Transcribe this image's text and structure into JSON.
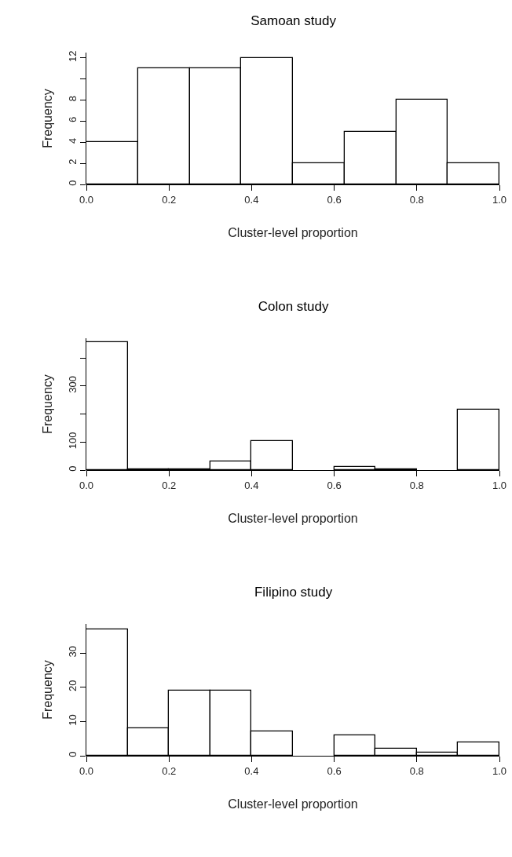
{
  "chart_data": [
    {
      "type": "histogram",
      "title": "Samoan study",
      "xlabel": "Cluster-level proportion",
      "ylabel": "Frequency",
      "color": "#ffffff",
      "grid": false,
      "legend": false,
      "bins": [
        0,
        0.125,
        0.25,
        0.375,
        0.5,
        0.625,
        0.75,
        0.875,
        1
      ],
      "values": [
        4,
        11,
        11,
        12,
        2,
        5,
        8,
        2
      ],
      "xlim": [
        0,
        1
      ],
      "xticks": [
        {
          "value": 0,
          "label": "0.0"
        },
        {
          "value": 0.2,
          "label": "0.2"
        },
        {
          "value": 0.4,
          "label": "0.4"
        },
        {
          "value": 0.6,
          "label": "0.6"
        },
        {
          "value": 0.8,
          "label": "0.8"
        },
        {
          "value": 1,
          "label": "1.0"
        }
      ],
      "ylim": [
        0,
        12.5
      ],
      "yticks": [
        0,
        2,
        4,
        6,
        8,
        {
          "value": 10,
          "label": null
        },
        12
      ]
    },
    {
      "type": "histogram",
      "title": "Colon study",
      "xlabel": "Cluster-level proportion",
      "ylabel": "Frequency",
      "color": "#ffffff",
      "grid": false,
      "legend": false,
      "bins": [
        0,
        0.1,
        0.2,
        0.3,
        0.4,
        0.5,
        0.6,
        0.7,
        0.8,
        0.9,
        1
      ],
      "values": [
        455,
        2,
        2,
        30,
        103,
        0,
        10,
        3,
        0,
        215
      ],
      "xlim": [
        0,
        1
      ],
      "xticks": [
        {
          "value": 0,
          "label": "0.0"
        },
        {
          "value": 0.2,
          "label": "0.2"
        },
        {
          "value": 0.4,
          "label": "0.4"
        },
        {
          "value": 0.6,
          "label": "0.6"
        },
        {
          "value": 0.8,
          "label": "0.8"
        },
        {
          "value": 1,
          "label": "1.0"
        }
      ],
      "ylim": [
        0,
        470
      ],
      "yticks": [
        0,
        100,
        {
          "value": 200,
          "label": null
        },
        300,
        {
          "value": 400,
          "label": null
        }
      ]
    },
    {
      "type": "histogram",
      "title": "Filipino study",
      "xlabel": "Cluster-level proportion",
      "ylabel": "Frequency",
      "color": "#ffffff",
      "grid": false,
      "legend": false,
      "bins": [
        0,
        0.1,
        0.2,
        0.3,
        0.4,
        0.5,
        0.6,
        0.7,
        0.8,
        0.9,
        1
      ],
      "values": [
        37,
        8,
        19,
        19,
        7,
        0,
        6,
        2,
        1,
        4
      ],
      "xlim": [
        0,
        1
      ],
      "xticks": [
        {
          "value": 0,
          "label": "0.0"
        },
        {
          "value": 0.2,
          "label": "0.2"
        },
        {
          "value": 0.4,
          "label": "0.4"
        },
        {
          "value": 0.6,
          "label": "0.6"
        },
        {
          "value": 0.8,
          "label": "0.8"
        },
        {
          "value": 1,
          "label": "1.0"
        }
      ],
      "ylim": [
        0,
        38.5
      ],
      "yticks": [
        0,
        10,
        20,
        30
      ]
    }
  ]
}
